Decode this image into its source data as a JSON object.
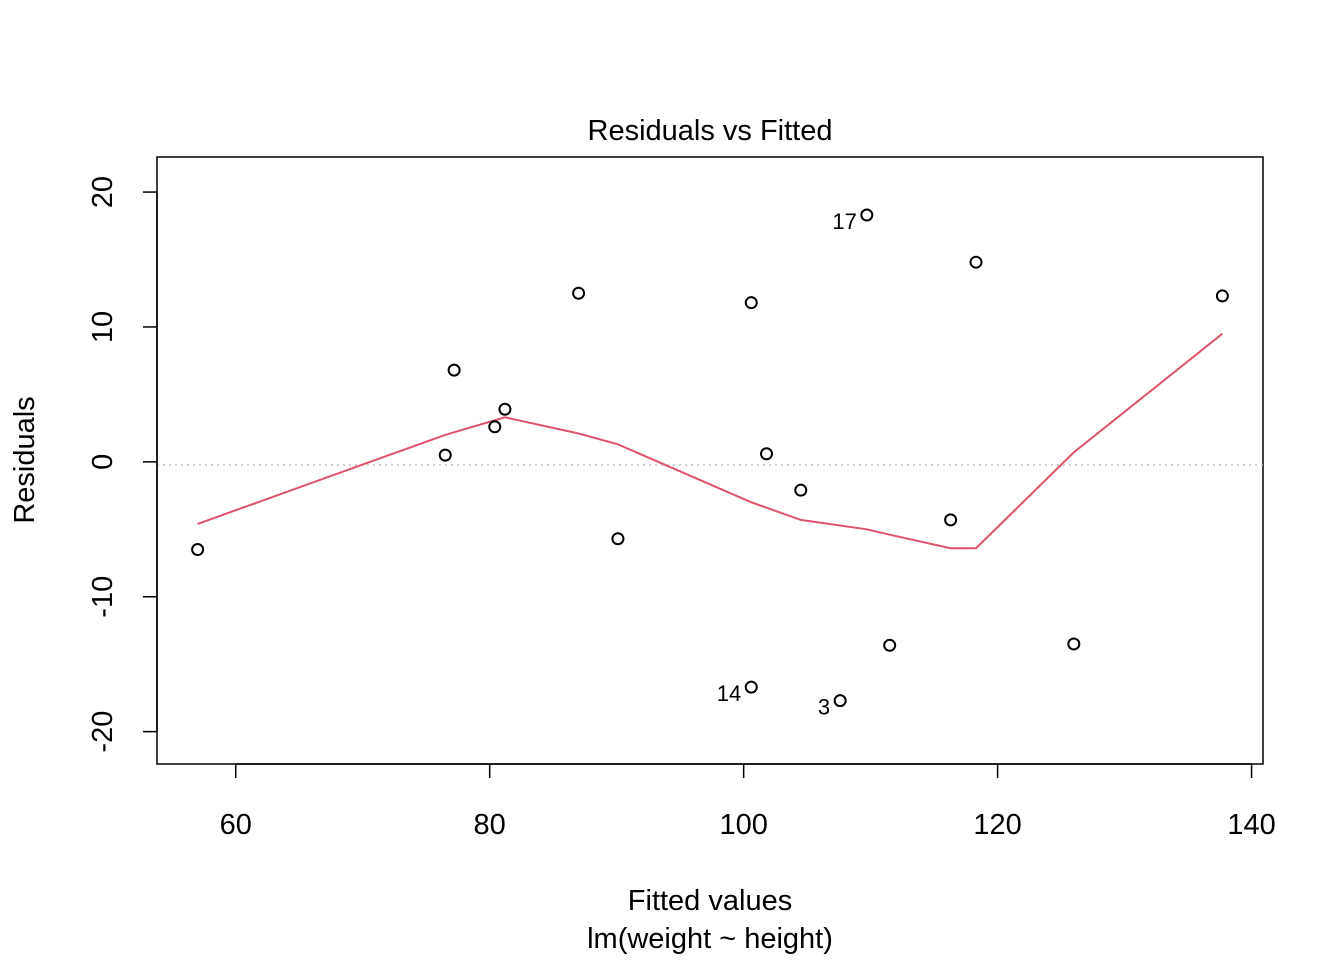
{
  "chart_data": {
    "type": "scatter",
    "title": "Residuals vs Fitted",
    "xlabel": "Fitted values",
    "subtitle": "lm(weight ~ height)",
    "ylabel": "Residuals",
    "xlim": [
      53.8,
      140.9
    ],
    "ylim": [
      -22.4,
      22.6
    ],
    "x_ticks": [
      60,
      80,
      100,
      120,
      140
    ],
    "x_tick_labels": [
      "60",
      "80",
      "100",
      "120",
      "140"
    ],
    "y_ticks": [
      -20,
      -10,
      0,
      10,
      20
    ],
    "y_tick_labels": [
      "-20",
      "-10",
      "0",
      "10",
      "20"
    ],
    "grid": false,
    "reference_line": {
      "y": 0,
      "style": "dotted",
      "color": "#bebebe"
    },
    "smoother_color": "#DF536B",
    "points": [
      {
        "x": 57.0,
        "y": -6.5,
        "label": ""
      },
      {
        "x": 76.5,
        "y": 0.5,
        "label": ""
      },
      {
        "x": 77.2,
        "y": 6.8,
        "label": ""
      },
      {
        "x": 80.4,
        "y": 2.6,
        "label": ""
      },
      {
        "x": 81.2,
        "y": 3.9,
        "label": ""
      },
      {
        "x": 87.0,
        "y": 12.5,
        "label": ""
      },
      {
        "x": 90.1,
        "y": -5.7,
        "label": ""
      },
      {
        "x": 100.6,
        "y": 11.8,
        "label": ""
      },
      {
        "x": 100.6,
        "y": -16.7,
        "label": "14"
      },
      {
        "x": 101.8,
        "y": 0.6,
        "label": ""
      },
      {
        "x": 104.5,
        "y": -2.1,
        "label": ""
      },
      {
        "x": 107.6,
        "y": -17.7,
        "label": "3"
      },
      {
        "x": 109.7,
        "y": 18.3,
        "label": "17"
      },
      {
        "x": 111.5,
        "y": -13.6,
        "label": ""
      },
      {
        "x": 116.3,
        "y": -4.3,
        "label": ""
      },
      {
        "x": 118.3,
        "y": 14.8,
        "label": ""
      },
      {
        "x": 126.0,
        "y": -13.5,
        "label": ""
      },
      {
        "x": 137.7,
        "y": 12.3,
        "label": ""
      }
    ],
    "smoother": {
      "x": [
        57.0,
        76.5,
        81.2,
        87.0,
        90.1,
        100.6,
        104.5,
        109.7,
        111.5,
        116.3,
        118.3,
        126.0,
        137.7
      ],
      "y": [
        -4.6,
        2.0,
        3.3,
        2.1,
        1.3,
        -3.0,
        -4.3,
        -5.0,
        -5.4,
        -6.4,
        -6.4,
        0.7,
        9.5
      ]
    }
  }
}
